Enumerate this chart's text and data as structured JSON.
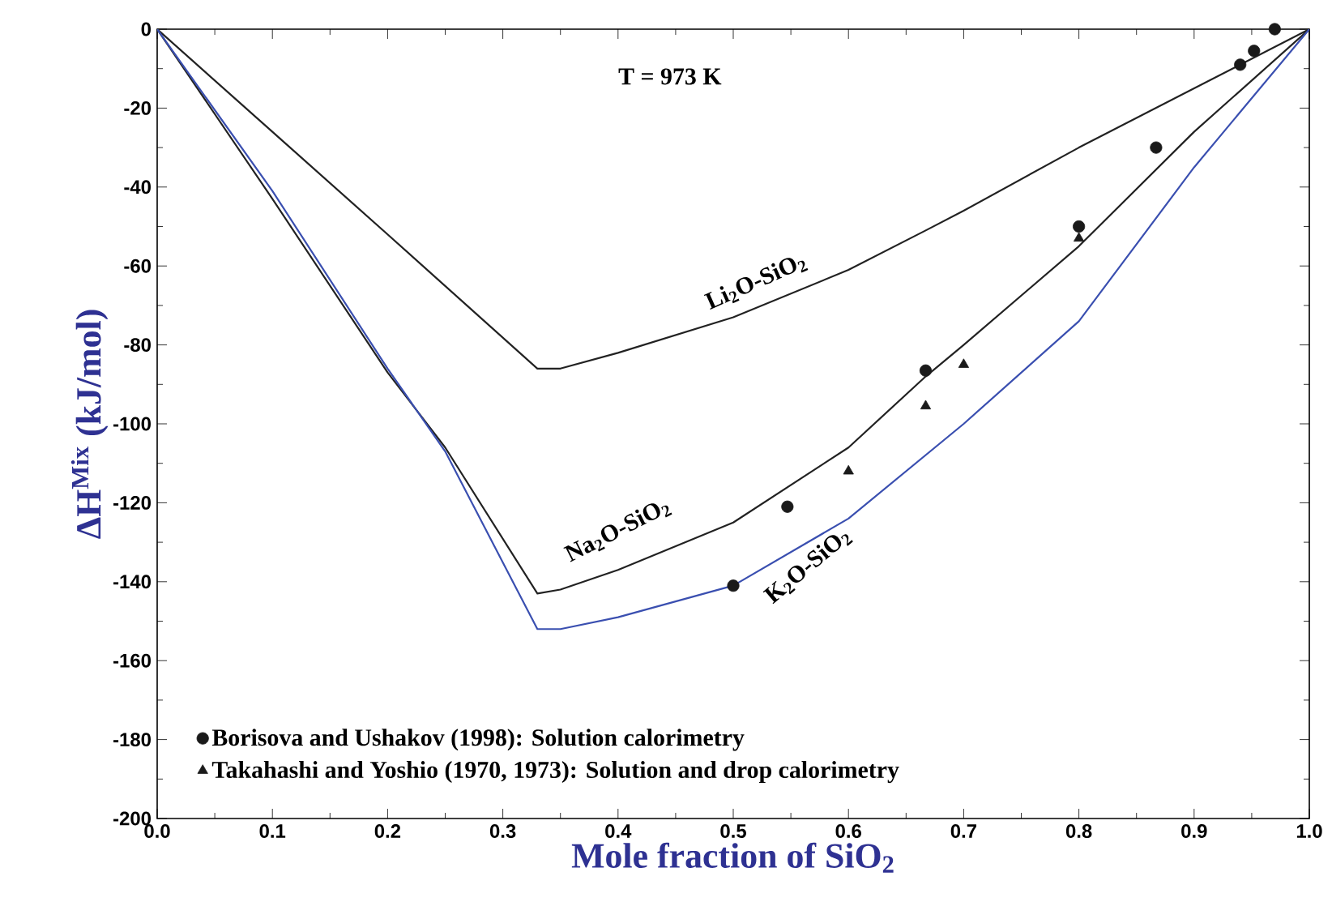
{
  "chart_data": {
    "type": "line",
    "xlabel": "Mole fraction of SiO$_{2}$",
    "ylabel": "ΔH$^{Mix}$ (kJ/mol)",
    "annotations": [
      "T = 973 K"
    ],
    "xlim": [
      0,
      1
    ],
    "ylim": [
      -200,
      0
    ],
    "xticks": [
      {
        "value": 0,
        "label": "0.0"
      },
      0.1,
      0.2,
      0.3,
      0.4,
      0.5,
      0.6,
      0.7,
      0.8,
      0.9,
      {
        "value": 1,
        "label": "1.0"
      }
    ],
    "yticks": [
      -200,
      -180,
      -160,
      -140,
      -120,
      -100,
      -80,
      -60,
      -40,
      -20,
      0
    ],
    "legend": "bottom left",
    "series": [
      {
        "name": "Li$_{2}$O-SiO$_{2}$",
        "marker": "none",
        "color": "#222222",
        "x": [
          0,
          0.1,
          0.2,
          0.33,
          0.35,
          0.4,
          0.5,
          0.6,
          0.667,
          0.7,
          0.8,
          0.9,
          1
        ],
        "values": [
          0,
          -26,
          -52,
          -86,
          -86,
          -82,
          -73,
          -61,
          -51,
          -46,
          -30,
          -15,
          0
        ]
      },
      {
        "name": "Na$_{2}$O-SiO$_{2}$",
        "marker": "none",
        "color": "#222222",
        "x": [
          0,
          0.1,
          0.2,
          0.25,
          0.33,
          0.35,
          0.4,
          0.5,
          0.6,
          0.667,
          0.7,
          0.8,
          0.9,
          1
        ],
        "values": [
          0,
          -43,
          -87,
          -106,
          -143,
          -142,
          -137,
          -125,
          -106,
          -88,
          -80,
          -55,
          -26,
          0
        ]
      },
      {
        "name": "K$_{2}$O-SiO$_{2}$",
        "marker": "none",
        "color": "#3a4fb0",
        "x": [
          0,
          0.1,
          0.2,
          0.25,
          0.33,
          0.35,
          0.4,
          0.5,
          0.6,
          0.7,
          0.8,
          0.9,
          1
        ],
        "values": [
          0,
          -41,
          -86,
          -107,
          -152,
          -152,
          -149,
          -141,
          -124,
          -100,
          -74,
          -35,
          0
        ]
      },
      {
        "name": "Borisova and Ushakov (1998): Solution calorimetry",
        "type": "scatter",
        "marker": "circle",
        "color": "#1a1a1a",
        "x": [
          0.5,
          0.547,
          0.667,
          0.8,
          0.867,
          0.94,
          0.952,
          0.97
        ],
        "values": [
          -141,
          -121,
          -86.5,
          -50,
          -30,
          -9,
          -5.5,
          0
        ]
      },
      {
        "name": "Takahashi and Yoshio (1970, 1973): Solution and drop calorimetry",
        "type": "scatter",
        "marker": "triangle",
        "color": "#1a1a1a",
        "x": [
          0.6,
          0.667,
          0.7,
          0.8
        ],
        "values": [
          -112,
          -95.5,
          -85,
          -53
        ]
      }
    ]
  }
}
